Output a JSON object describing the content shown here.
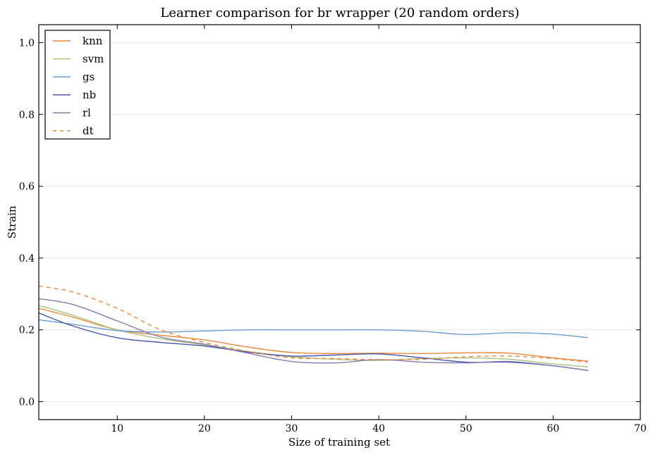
{
  "chart_data": {
    "type": "line",
    "title": "Learner comparison for br wrapper (20 random orders)",
    "xlabel": "Size of training set",
    "ylabel": "Strain",
    "xlim": [
      1,
      70
    ],
    "ylim": [
      -0.05,
      1.05
    ],
    "xticks": [
      10,
      20,
      30,
      40,
      50,
      60,
      70
    ],
    "yticks": [
      0.0,
      0.2,
      0.4,
      0.6,
      0.8,
      1.0
    ],
    "ytick_labels": [
      "0.0",
      "0.2",
      "0.4",
      "0.6",
      "0.8",
      "1.0"
    ],
    "grid": "horizontal",
    "legend_placement": "top-left",
    "x": [
      1,
      5,
      10,
      15,
      20,
      25,
      30,
      35,
      40,
      45,
      50,
      55,
      60,
      64
    ],
    "series": [
      {
        "name": "knn",
        "color": "#f0873e",
        "dash": false,
        "values": [
          0.26,
          0.235,
          0.2,
          0.185,
          0.172,
          0.152,
          0.137,
          0.134,
          0.135,
          0.134,
          0.136,
          0.135,
          0.122,
          0.113
        ]
      },
      {
        "name": "svm",
        "color": "#a8c47c",
        "dash": false,
        "values": [
          0.268,
          0.24,
          0.2,
          0.175,
          0.158,
          0.14,
          0.125,
          0.118,
          0.115,
          0.12,
          0.122,
          0.118,
          0.105,
          0.097
        ]
      },
      {
        "name": "gs",
        "color": "#6a9fd6",
        "dash": false,
        "values": [
          0.228,
          0.215,
          0.198,
          0.194,
          0.197,
          0.2,
          0.2,
          0.2,
          0.2,
          0.196,
          0.187,
          0.192,
          0.188,
          0.178
        ]
      },
      {
        "name": "nb",
        "color": "#4455aa",
        "dash": false,
        "values": [
          0.247,
          0.21,
          0.178,
          0.165,
          0.155,
          0.138,
          0.127,
          0.13,
          0.133,
          0.122,
          0.11,
          0.11,
          0.1,
          0.087
        ]
      },
      {
        "name": "rl",
        "color": "#8878b4",
        "dash": false,
        "values": [
          0.287,
          0.27,
          0.225,
          0.18,
          0.16,
          0.135,
          0.112,
          0.108,
          0.117,
          0.11,
          0.108,
          0.112,
          0.1,
          0.087
        ]
      },
      {
        "name": "dt",
        "color": "#f0873e",
        "dash": true,
        "values": [
          0.322,
          0.305,
          0.26,
          0.2,
          0.165,
          0.14,
          0.122,
          0.12,
          0.117,
          0.118,
          0.125,
          0.127,
          0.12,
          0.11
        ]
      }
    ]
  }
}
